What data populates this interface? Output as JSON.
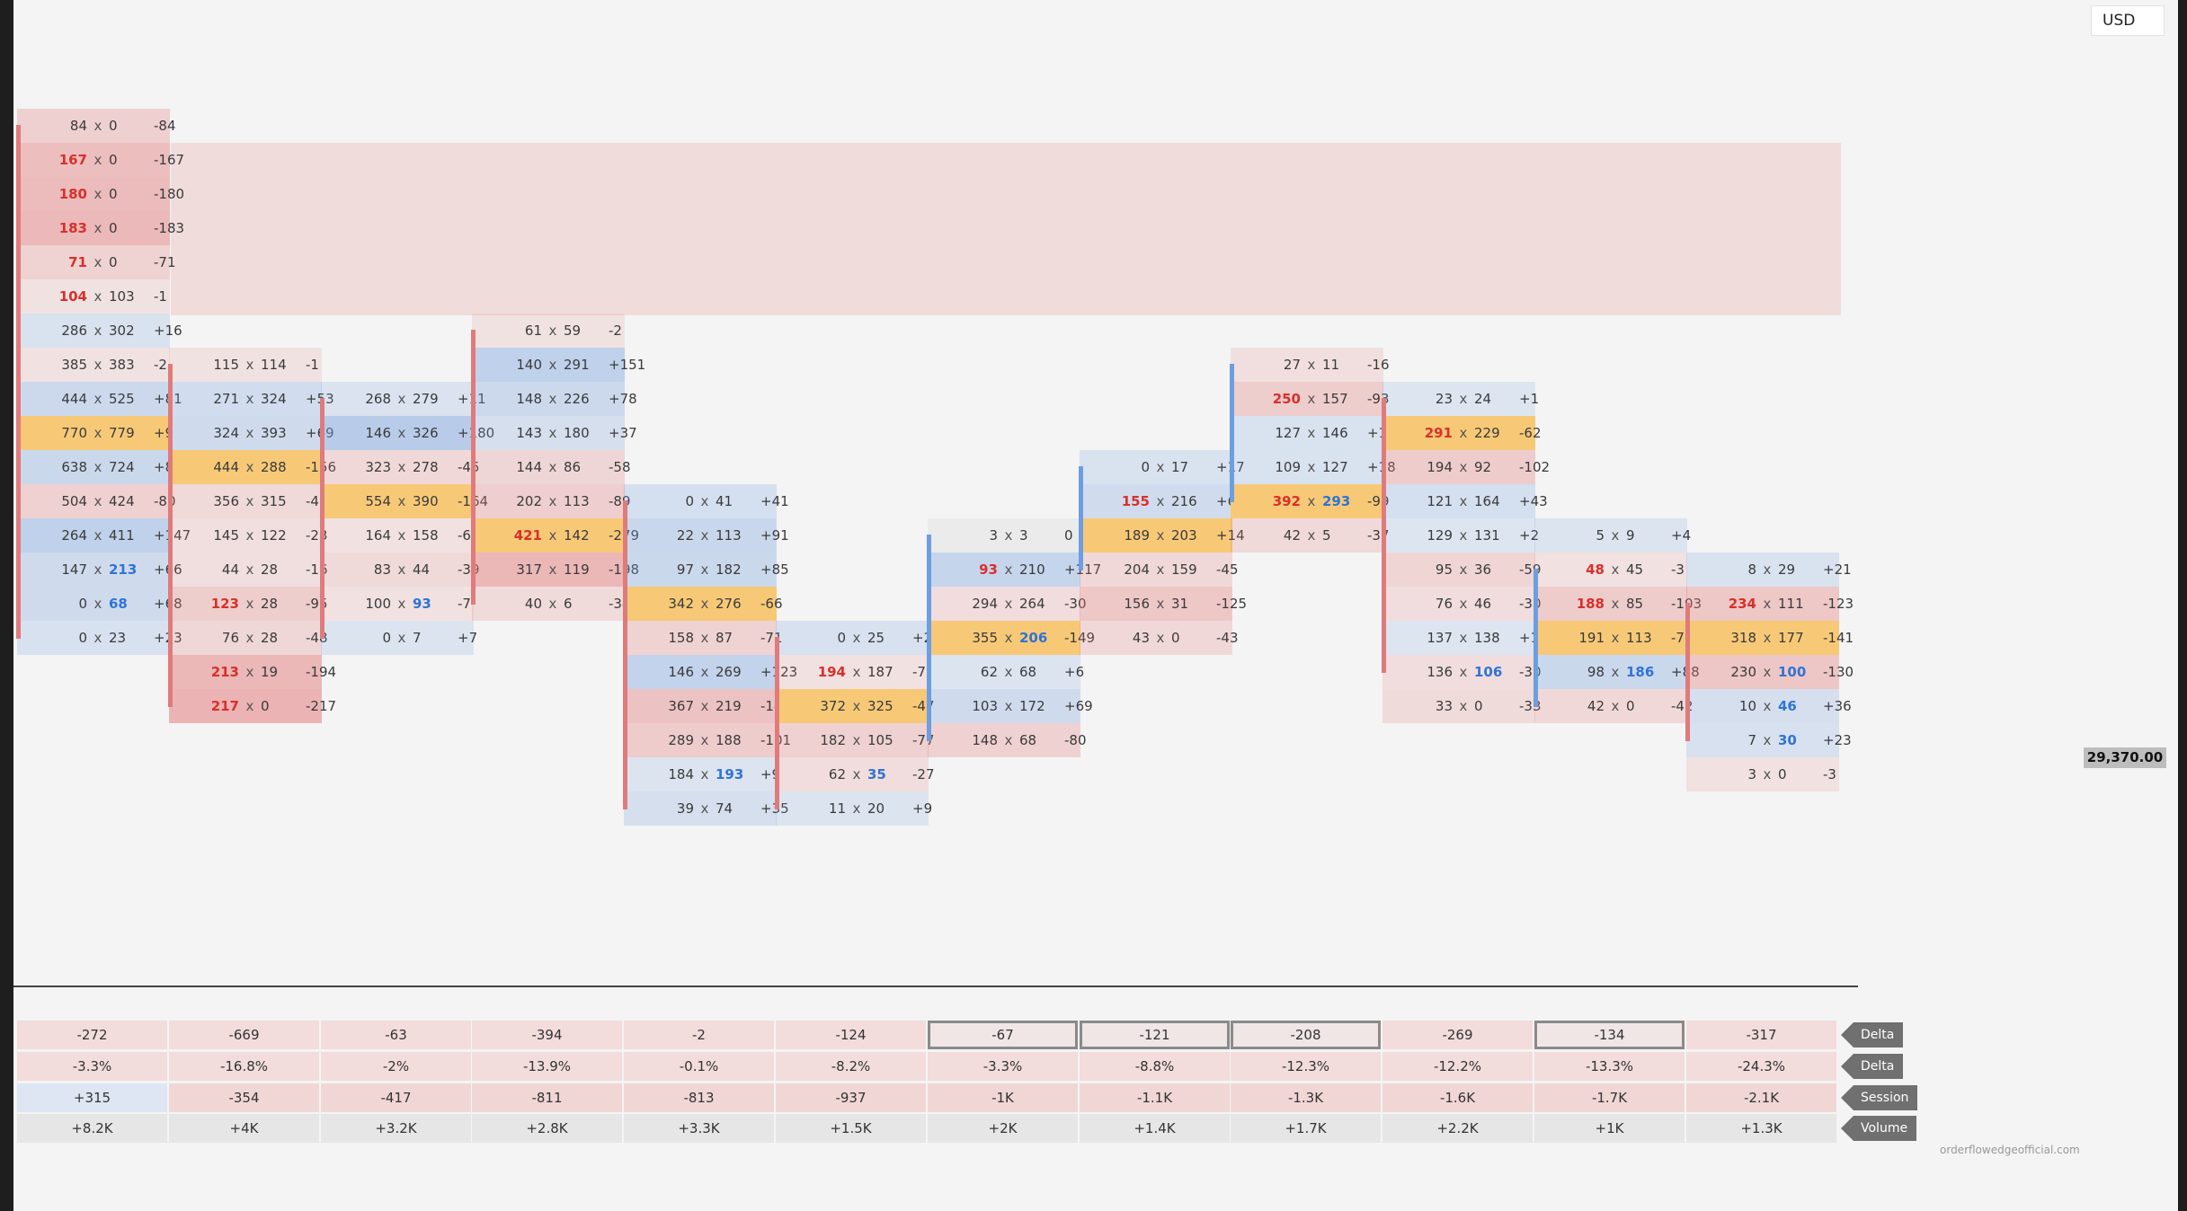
{
  "header": {
    "currency": "USD"
  },
  "price_label": "29,370.00",
  "credit": "orderflowedgeofficial.com",
  "colors": {
    "candle_down": "#e07b7b",
    "candle_up": "#6c9ee0",
    "ask_dominant": "#d9302b",
    "bid_dominant": "#2f74d6",
    "poc": "#f6c46e",
    "highlight_band": "#f1dcdc"
  },
  "chart_data": {
    "type": "table",
    "price_axis": {
      "current_price": "29,370.00",
      "visible_levels": 21
    },
    "columns": [
      {
        "candle": "down",
        "candle_from_level": 0,
        "candle_to_level": 15,
        "rows": [
          {
            "l": "84",
            "r": "0",
            "d": "-84",
            "level": 0,
            "hl": ""
          },
          {
            "l": "167",
            "r": "0",
            "d": "-167",
            "level": 1,
            "hl": "l"
          },
          {
            "l": "180",
            "r": "0",
            "d": "-180",
            "level": 2,
            "hl": "l"
          },
          {
            "l": "183",
            "r": "0",
            "d": "-183",
            "level": 3,
            "hl": "l"
          },
          {
            "l": "71",
            "r": "0",
            "d": "-71",
            "level": 4,
            "hl": "l"
          },
          {
            "l": "104",
            "r": "103",
            "d": "-1",
            "level": 5,
            "hl": "l"
          },
          {
            "l": "286",
            "r": "302",
            "d": "+16",
            "level": 6,
            "hl": ""
          },
          {
            "l": "385",
            "r": "383",
            "d": "-2",
            "level": 7,
            "hl": ""
          },
          {
            "l": "444",
            "r": "525",
            "d": "+81",
            "level": 8,
            "hl": ""
          },
          {
            "l": "770",
            "r": "779",
            "d": "+9",
            "level": 9,
            "hl": "",
            "poc": true
          },
          {
            "l": "638",
            "r": "724",
            "d": "+86",
            "level": 10,
            "hl": ""
          },
          {
            "l": "504",
            "r": "424",
            "d": "-80",
            "level": 11,
            "hl": ""
          },
          {
            "l": "264",
            "r": "411",
            "d": "+147",
            "level": 12,
            "hl": ""
          },
          {
            "l": "147",
            "r": "213",
            "d": "+66",
            "level": 13,
            "hl": "r"
          },
          {
            "l": "0",
            "r": "68",
            "d": "+68",
            "level": 14,
            "hl": "r"
          },
          {
            "l": "0",
            "r": "23",
            "d": "+23",
            "level": 15,
            "hl": ""
          }
        ]
      },
      {
        "candle": "down",
        "candle_from_level": 7,
        "candle_to_level": 17,
        "rows": [
          {
            "l": "115",
            "r": "114",
            "d": "-1",
            "level": 7,
            "hl": ""
          },
          {
            "l": "271",
            "r": "324",
            "d": "+53",
            "level": 8,
            "hl": ""
          },
          {
            "l": "324",
            "r": "393",
            "d": "+69",
            "level": 9,
            "hl": ""
          },
          {
            "l": "444",
            "r": "288",
            "d": "-156",
            "level": 10,
            "hl": "",
            "poc": true
          },
          {
            "l": "356",
            "r": "315",
            "d": "-41",
            "level": 11,
            "hl": ""
          },
          {
            "l": "145",
            "r": "122",
            "d": "-23",
            "level": 12,
            "hl": ""
          },
          {
            "l": "44",
            "r": "28",
            "d": "-16",
            "level": 13,
            "hl": ""
          },
          {
            "l": "123",
            "r": "28",
            "d": "-95",
            "level": 14,
            "hl": "l"
          },
          {
            "l": "76",
            "r": "28",
            "d": "-48",
            "level": 15,
            "hl": ""
          },
          {
            "l": "213",
            "r": "19",
            "d": "-194",
            "level": 16,
            "hl": "l"
          },
          {
            "l": "217",
            "r": "0",
            "d": "-217",
            "level": 17,
            "hl": "l"
          }
        ]
      },
      {
        "candle": "down",
        "candle_from_level": 8,
        "candle_to_level": 15,
        "rows": [
          {
            "l": "268",
            "r": "279",
            "d": "+11",
            "level": 8,
            "hl": ""
          },
          {
            "l": "146",
            "r": "326",
            "d": "+180",
            "level": 9,
            "hl": ""
          },
          {
            "l": "323",
            "r": "278",
            "d": "-45",
            "level": 10,
            "hl": ""
          },
          {
            "l": "554",
            "r": "390",
            "d": "-164",
            "level": 11,
            "hl": "",
            "poc": true
          },
          {
            "l": "164",
            "r": "158",
            "d": "-6",
            "level": 12,
            "hl": ""
          },
          {
            "l": "83",
            "r": "44",
            "d": "-39",
            "level": 13,
            "hl": ""
          },
          {
            "l": "100",
            "r": "93",
            "d": "-7",
            "level": 14,
            "hl": "r"
          },
          {
            "l": "0",
            "r": "7",
            "d": "+7",
            "level": 15,
            "hl": ""
          }
        ]
      },
      {
        "candle": "down",
        "candle_from_level": 6,
        "candle_to_level": 14,
        "rows": [
          {
            "l": "61",
            "r": "59",
            "d": "-2",
            "level": 6,
            "hl": ""
          },
          {
            "l": "140",
            "r": "291",
            "d": "+151",
            "level": 7,
            "hl": ""
          },
          {
            "l": "148",
            "r": "226",
            "d": "+78",
            "level": 8,
            "hl": ""
          },
          {
            "l": "143",
            "r": "180",
            "d": "+37",
            "level": 9,
            "hl": ""
          },
          {
            "l": "144",
            "r": "86",
            "d": "-58",
            "level": 10,
            "hl": ""
          },
          {
            "l": "202",
            "r": "113",
            "d": "-89",
            "level": 11,
            "hl": ""
          },
          {
            "l": "421",
            "r": "142",
            "d": "-279",
            "level": 12,
            "hl": "l",
            "poc": true
          },
          {
            "l": "317",
            "r": "119",
            "d": "-198",
            "level": 13,
            "hl": ""
          },
          {
            "l": "40",
            "r": "6",
            "d": "-34",
            "level": 14,
            "hl": ""
          }
        ]
      },
      {
        "candle": "down",
        "candle_from_level": 11,
        "candle_to_level": 20,
        "rows": [
          {
            "l": "0",
            "r": "41",
            "d": "+41",
            "level": 11,
            "hl": ""
          },
          {
            "l": "22",
            "r": "113",
            "d": "+91",
            "level": 12,
            "hl": ""
          },
          {
            "l": "97",
            "r": "182",
            "d": "+85",
            "level": 13,
            "hl": ""
          },
          {
            "l": "342",
            "r": "276",
            "d": "-66",
            "level": 14,
            "hl": "",
            "poc": true
          },
          {
            "l": "158",
            "r": "87",
            "d": "-71",
            "level": 15,
            "hl": ""
          },
          {
            "l": "146",
            "r": "269",
            "d": "+123",
            "level": 16,
            "hl": ""
          },
          {
            "l": "367",
            "r": "219",
            "d": "-148",
            "level": 17,
            "hl": ""
          },
          {
            "l": "289",
            "r": "188",
            "d": "-101",
            "level": 18,
            "hl": ""
          },
          {
            "l": "184",
            "r": "193",
            "d": "+9",
            "level": 19,
            "hl": "r"
          },
          {
            "l": "39",
            "r": "74",
            "d": "+35",
            "level": 20,
            "hl": ""
          }
        ]
      },
      {
        "candle": "down",
        "candle_from_level": 15,
        "candle_to_level": 20,
        "rows": [
          {
            "l": "0",
            "r": "25",
            "d": "+25",
            "level": 15,
            "hl": ""
          },
          {
            "l": "194",
            "r": "187",
            "d": "-7",
            "level": 16,
            "hl": "l"
          },
          {
            "l": "372",
            "r": "325",
            "d": "-47",
            "level": 17,
            "hl": "",
            "poc": true
          },
          {
            "l": "182",
            "r": "105",
            "d": "-77",
            "level": 18,
            "hl": ""
          },
          {
            "l": "62",
            "r": "35",
            "d": "-27",
            "level": 19,
            "hl": "r"
          },
          {
            "l": "11",
            "r": "20",
            "d": "+9",
            "level": 20,
            "hl": ""
          }
        ]
      },
      {
        "candle": "up",
        "candle_from_level": 12,
        "candle_to_level": 18,
        "rows": [
          {
            "l": "3",
            "r": "3",
            "d": "0",
            "level": 12,
            "hl": ""
          },
          {
            "l": "93",
            "r": "210",
            "d": "+117",
            "level": 13,
            "hl": "l"
          },
          {
            "l": "294",
            "r": "264",
            "d": "-30",
            "level": 14,
            "hl": ""
          },
          {
            "l": "355",
            "r": "206",
            "d": "-149",
            "level": 15,
            "hl": "r",
            "poc": true
          },
          {
            "l": "62",
            "r": "68",
            "d": "+6",
            "level": 16,
            "hl": ""
          },
          {
            "l": "103",
            "r": "172",
            "d": "+69",
            "level": 17,
            "hl": ""
          },
          {
            "l": "148",
            "r": "68",
            "d": "-80",
            "level": 18,
            "hl": ""
          }
        ]
      },
      {
        "candle": "up",
        "candle_from_level": 10,
        "candle_to_level": 13,
        "rows": [
          {
            "l": "0",
            "r": "17",
            "d": "+17",
            "level": 10,
            "hl": ""
          },
          {
            "l": "155",
            "r": "216",
            "d": "+61",
            "level": 11,
            "hl": "l"
          },
          {
            "l": "189",
            "r": "203",
            "d": "+14",
            "level": 12,
            "hl": "",
            "poc": true
          },
          {
            "l": "204",
            "r": "159",
            "d": "-45",
            "level": 13,
            "hl": ""
          },
          {
            "l": "156",
            "r": "31",
            "d": "-125",
            "level": 14,
            "hl": ""
          },
          {
            "l": "43",
            "r": "0",
            "d": "-43",
            "level": 15,
            "hl": ""
          }
        ]
      },
      {
        "candle": "up",
        "candle_from_level": 7,
        "candle_to_level": 11,
        "rows": [
          {
            "l": "27",
            "r": "11",
            "d": "-16",
            "level": 7,
            "hl": ""
          },
          {
            "l": "250",
            "r": "157",
            "d": "-93",
            "level": 8,
            "hl": "l"
          },
          {
            "l": "127",
            "r": "146",
            "d": "+19",
            "level": 9,
            "hl": ""
          },
          {
            "l": "109",
            "r": "127",
            "d": "+18",
            "level": 10,
            "hl": ""
          },
          {
            "l": "392",
            "r": "293",
            "d": "-99",
            "level": 11,
            "hl": "lr",
            "poc": true
          },
          {
            "l": "42",
            "r": "5",
            "d": "-37",
            "level": 12,
            "hl": ""
          }
        ]
      },
      {
        "candle": "down",
        "candle_from_level": 8,
        "candle_to_level": 16,
        "rows": [
          {
            "l": "23",
            "r": "24",
            "d": "+1",
            "level": 8,
            "hl": ""
          },
          {
            "l": "291",
            "r": "229",
            "d": "-62",
            "level": 9,
            "hl": "l",
            "poc": true
          },
          {
            "l": "194",
            "r": "92",
            "d": "-102",
            "level": 10,
            "hl": ""
          },
          {
            "l": "121",
            "r": "164",
            "d": "+43",
            "level": 11,
            "hl": ""
          },
          {
            "l": "129",
            "r": "131",
            "d": "+2",
            "level": 12,
            "hl": ""
          },
          {
            "l": "95",
            "r": "36",
            "d": "-59",
            "level": 13,
            "hl": ""
          },
          {
            "l": "76",
            "r": "46",
            "d": "-30",
            "level": 14,
            "hl": ""
          },
          {
            "l": "137",
            "r": "138",
            "d": "+1",
            "level": 15,
            "hl": ""
          },
          {
            "l": "136",
            "r": "106",
            "d": "-30",
            "level": 16,
            "hl": "r"
          },
          {
            "l": "33",
            "r": "0",
            "d": "-33",
            "level": 17,
            "hl": ""
          }
        ]
      },
      {
        "candle": "up",
        "candle_from_level": 13,
        "candle_to_level": 17,
        "rows": [
          {
            "l": "5",
            "r": "9",
            "d": "+4",
            "level": 12,
            "hl": ""
          },
          {
            "l": "48",
            "r": "45",
            "d": "-3",
            "level": 13,
            "hl": "l"
          },
          {
            "l": "188",
            "r": "85",
            "d": "-103",
            "level": 14,
            "hl": "l"
          },
          {
            "l": "191",
            "r": "113",
            "d": "-78",
            "level": 15,
            "hl": "",
            "poc": true
          },
          {
            "l": "98",
            "r": "186",
            "d": "+88",
            "level": 16,
            "hl": "r"
          },
          {
            "l": "42",
            "r": "0",
            "d": "-42",
            "level": 17,
            "hl": ""
          }
        ]
      },
      {
        "candle": "down",
        "candle_from_level": 14,
        "candle_to_level": 18,
        "rows": [
          {
            "l": "8",
            "r": "29",
            "d": "+21",
            "level": 13,
            "hl": ""
          },
          {
            "l": "234",
            "r": "111",
            "d": "-123",
            "level": 14,
            "hl": "l"
          },
          {
            "l": "318",
            "r": "177",
            "d": "-141",
            "level": 15,
            "hl": "",
            "poc": true
          },
          {
            "l": "230",
            "r": "100",
            "d": "-130",
            "level": 16,
            "hl": "r"
          },
          {
            "l": "10",
            "r": "46",
            "d": "+36",
            "level": 17,
            "hl": "r"
          },
          {
            "l": "7",
            "r": "30",
            "d": "+23",
            "level": 18,
            "hl": "r"
          },
          {
            "l": "3",
            "r": "0",
            "d": "-3",
            "level": 19,
            "hl": ""
          }
        ]
      }
    ]
  },
  "stats": {
    "row_labels": [
      "Delta",
      "Delta %",
      "Session Delta",
      "Volume"
    ],
    "rows": [
      [
        "-272",
        "-669",
        "-63",
        "-394",
        "-2",
        "-124",
        "-67",
        "-121",
        "-208",
        "-269",
        "-134",
        "-317"
      ],
      [
        "-3.3%",
        "-16.8%",
        "-2%",
        "-13.9%",
        "-0.1%",
        "-8.2%",
        "-3.3%",
        "-8.8%",
        "-12.3%",
        "-12.2%",
        "-13.3%",
        "-24.3%"
      ],
      [
        "+315",
        "-354",
        "-417",
        "-811",
        "-813",
        "-937",
        "-1K",
        "-1.1K",
        "-1.3K",
        "-1.6K",
        "-1.7K",
        "-2.1K"
      ],
      [
        "+8.2K",
        "+4K",
        "+3.2K",
        "+2.8K",
        "+3.3K",
        "+1.5K",
        "+2K",
        "+1.4K",
        "+1.7K",
        "+2.2K",
        "+1K",
        "+1.3K"
      ]
    ],
    "boxed_delta_columns": [
      6,
      7,
      8,
      10
    ]
  }
}
